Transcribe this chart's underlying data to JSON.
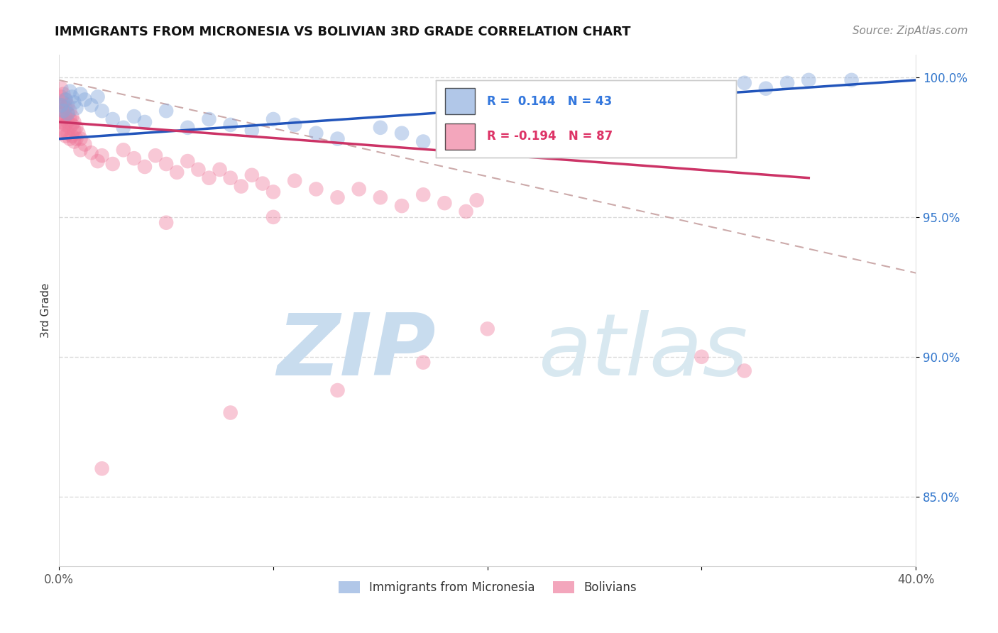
{
  "title": "IMMIGRANTS FROM MICRONESIA VS BOLIVIAN 3RD GRADE CORRELATION CHART",
  "source": "Source: ZipAtlas.com",
  "ylabel": "3rd Grade",
  "xlim": [
    0.0,
    0.4
  ],
  "ylim": [
    0.825,
    1.008
  ],
  "xticks": [
    0.0,
    0.1,
    0.2,
    0.3,
    0.4
  ],
  "xtick_labels": [
    "0.0%",
    "",
    "",
    "",
    "40.0%"
  ],
  "yticks": [
    0.85,
    0.9,
    0.95,
    1.0
  ],
  "ytick_labels": [
    "85.0%",
    "90.0%",
    "95.0%",
    "100.0%"
  ],
  "blue_color": "#88AADD",
  "pink_color": "#EE7799",
  "blue_scatter": [
    [
      0.001,
      0.99
    ],
    [
      0.002,
      0.988
    ],
    [
      0.003,
      0.992
    ],
    [
      0.004,
      0.987
    ],
    [
      0.005,
      0.995
    ],
    [
      0.006,
      0.993
    ],
    [
      0.007,
      0.991
    ],
    [
      0.008,
      0.989
    ],
    [
      0.01,
      0.994
    ],
    [
      0.012,
      0.992
    ],
    [
      0.015,
      0.99
    ],
    [
      0.018,
      0.993
    ],
    [
      0.02,
      0.988
    ],
    [
      0.025,
      0.985
    ],
    [
      0.03,
      0.982
    ],
    [
      0.035,
      0.986
    ],
    [
      0.04,
      0.984
    ],
    [
      0.05,
      0.988
    ],
    [
      0.06,
      0.982
    ],
    [
      0.07,
      0.985
    ],
    [
      0.08,
      0.983
    ],
    [
      0.09,
      0.981
    ],
    [
      0.1,
      0.985
    ],
    [
      0.11,
      0.983
    ],
    [
      0.12,
      0.98
    ],
    [
      0.13,
      0.978
    ],
    [
      0.15,
      0.982
    ],
    [
      0.16,
      0.98
    ],
    [
      0.17,
      0.977
    ],
    [
      0.18,
      0.979
    ],
    [
      0.19,
      0.977
    ],
    [
      0.2,
      0.975
    ],
    [
      0.21,
      0.978
    ],
    [
      0.22,
      0.976
    ],
    [
      0.25,
      0.974
    ],
    [
      0.29,
      0.978
    ],
    [
      0.3,
      0.985
    ],
    [
      0.31,
      0.99
    ],
    [
      0.32,
      0.998
    ],
    [
      0.33,
      0.996
    ],
    [
      0.34,
      0.998
    ],
    [
      0.35,
      0.999
    ],
    [
      0.37,
      0.999
    ]
  ],
  "pink_scatter": [
    [
      0.001,
      0.996
    ],
    [
      0.001,
      0.993
    ],
    [
      0.001,
      0.99
    ],
    [
      0.001,
      0.987
    ],
    [
      0.001,
      0.984
    ],
    [
      0.001,
      0.98
    ],
    [
      0.002,
      0.994
    ],
    [
      0.002,
      0.991
    ],
    [
      0.002,
      0.988
    ],
    [
      0.002,
      0.985
    ],
    [
      0.002,
      0.981
    ],
    [
      0.003,
      0.992
    ],
    [
      0.003,
      0.989
    ],
    [
      0.003,
      0.986
    ],
    [
      0.003,
      0.983
    ],
    [
      0.003,
      0.979
    ],
    [
      0.004,
      0.99
    ],
    [
      0.004,
      0.987
    ],
    [
      0.004,
      0.984
    ],
    [
      0.004,
      0.98
    ],
    [
      0.005,
      0.988
    ],
    [
      0.005,
      0.985
    ],
    [
      0.005,
      0.982
    ],
    [
      0.005,
      0.978
    ],
    [
      0.006,
      0.986
    ],
    [
      0.006,
      0.983
    ],
    [
      0.006,
      0.979
    ],
    [
      0.007,
      0.984
    ],
    [
      0.007,
      0.981
    ],
    [
      0.007,
      0.977
    ],
    [
      0.008,
      0.982
    ],
    [
      0.008,
      0.978
    ],
    [
      0.009,
      0.98
    ],
    [
      0.01,
      0.978
    ],
    [
      0.01,
      0.974
    ],
    [
      0.012,
      0.976
    ],
    [
      0.015,
      0.973
    ],
    [
      0.018,
      0.97
    ],
    [
      0.02,
      0.972
    ],
    [
      0.025,
      0.969
    ],
    [
      0.03,
      0.974
    ],
    [
      0.035,
      0.971
    ],
    [
      0.04,
      0.968
    ],
    [
      0.045,
      0.972
    ],
    [
      0.05,
      0.969
    ],
    [
      0.055,
      0.966
    ],
    [
      0.06,
      0.97
    ],
    [
      0.065,
      0.967
    ],
    [
      0.07,
      0.964
    ],
    [
      0.075,
      0.967
    ],
    [
      0.08,
      0.964
    ],
    [
      0.085,
      0.961
    ],
    [
      0.09,
      0.965
    ],
    [
      0.095,
      0.962
    ],
    [
      0.1,
      0.959
    ],
    [
      0.11,
      0.963
    ],
    [
      0.12,
      0.96
    ],
    [
      0.13,
      0.957
    ],
    [
      0.14,
      0.96
    ],
    [
      0.15,
      0.957
    ],
    [
      0.16,
      0.954
    ],
    [
      0.17,
      0.958
    ],
    [
      0.18,
      0.955
    ],
    [
      0.19,
      0.952
    ],
    [
      0.195,
      0.956
    ],
    [
      0.05,
      0.948
    ],
    [
      0.1,
      0.95
    ],
    [
      0.08,
      0.88
    ],
    [
      0.13,
      0.888
    ],
    [
      0.17,
      0.898
    ],
    [
      0.32,
      0.895
    ],
    [
      0.2,
      0.91
    ],
    [
      0.3,
      0.9
    ],
    [
      0.02,
      0.86
    ]
  ],
  "blue_trend_x": [
    0.0,
    0.4
  ],
  "blue_trend_y": [
    0.978,
    0.999
  ],
  "pink_trend_x": [
    0.0,
    0.35
  ],
  "pink_trend_y": [
    0.984,
    0.964
  ],
  "dash_trend_x": [
    0.0,
    0.4
  ],
  "dash_trend_y": [
    0.999,
    0.93
  ],
  "watermark_zip": "ZIP",
  "watermark_atlas": "atlas",
  "watermark_color": "#C8DCEE",
  "background_color": "#FFFFFF",
  "grid_color": "#CCCCCC",
  "title_fontsize": 13,
  "source_fontsize": 11,
  "tick_fontsize": 12,
  "ylabel_fontsize": 11
}
